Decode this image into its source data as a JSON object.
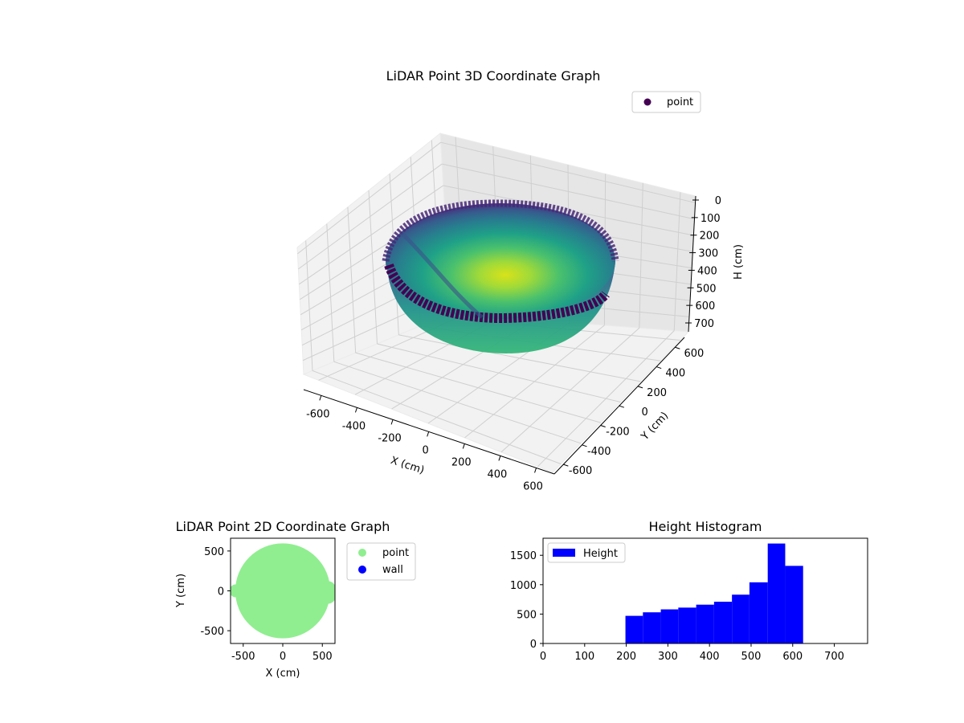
{
  "chart_data": [
    {
      "type": "scatter3d",
      "title": "LiDAR Point 3D Coordinate Graph",
      "xlabel": "X (cm)",
      "ylabel": "Y (cm)",
      "zlabel": "H (cm)",
      "xticks": [
        "-600",
        "-400",
        "-200",
        "0",
        "200",
        "400",
        "600"
      ],
      "yticks": [
        "-600",
        "-400",
        "-200",
        "0",
        "200",
        "400",
        "600"
      ],
      "zticks": [
        "0",
        "100",
        "200",
        "300",
        "400",
        "500",
        "600",
        "700"
      ],
      "xlim": [
        -600,
        600
      ],
      "ylim": [
        -600,
        600
      ],
      "zlim": [
        0,
        750
      ],
      "z_inverted": true,
      "colormap": "viridis",
      "legend": [
        {
          "label": "point",
          "color": "#440154"
        }
      ],
      "legend_position": "top-right",
      "grid": true,
      "surface": {
        "shape": "hemispherical bowl",
        "radius": 600,
        "depth_min": 200,
        "depth_max": 625
      }
    },
    {
      "type": "scatter",
      "title": "LiDAR Point 2D Coordinate Graph",
      "xlabel": "X (cm)",
      "ylabel": "Y (cm)",
      "xticks": [
        "-500",
        "0",
        "500"
      ],
      "yticks": [
        "500",
        "0",
        "-500"
      ],
      "xlim": [
        -660,
        660
      ],
      "ylim": [
        -660,
        660
      ],
      "series": [
        {
          "name": "point",
          "color": "#90ee90",
          "shape": "disc",
          "radius": 600
        },
        {
          "name": "wall",
          "color": "#0000ff"
        }
      ],
      "legend_position": "outside-right",
      "grid": false
    },
    {
      "type": "bar",
      "title": "Height Histogram",
      "bin_edges": [
        198,
        240,
        283,
        325,
        368,
        411,
        454,
        496,
        540,
        582,
        625
      ],
      "values": [
        470,
        530,
        580,
        610,
        660,
        710,
        830,
        1040,
        1700,
        1320
      ],
      "color": "#0000ff",
      "series": [
        {
          "name": "Height",
          "color": "#0000ff"
        }
      ],
      "xticks": [
        "0",
        "100",
        "200",
        "300",
        "400",
        "500",
        "600",
        "700"
      ],
      "yticks": [
        "0",
        "500",
        "1000",
        "1500"
      ],
      "xlim": [
        0,
        780
      ],
      "ylim": [
        0,
        1790
      ],
      "legend_position": "top-left",
      "grid": false
    }
  ]
}
